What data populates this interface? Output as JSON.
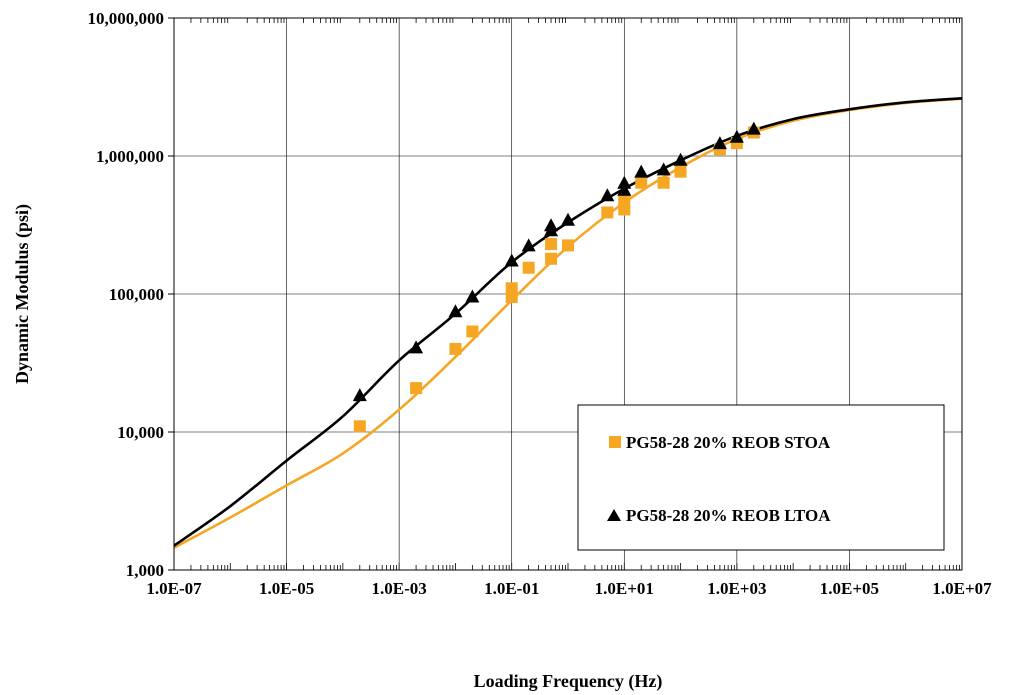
{
  "chart_data": {
    "type": "scatter",
    "xlabel": "Loading Frequency (Hz)",
    "ylabel": "Dynamic Modulus (psi)",
    "x_scale": "log",
    "y_scale": "log",
    "xlim": [
      1e-07,
      10000000.0
    ],
    "ylim": [
      1000,
      10000000
    ],
    "x_tick_labels": [
      "1.0E-07",
      "1.0E-05",
      "1.0E-03",
      "1.0E-01",
      "1.0E+01",
      "1.0E+03",
      "1.0E+05",
      "1.0E+07"
    ],
    "y_tick_labels": [
      "1,000",
      "10,000",
      "100,000",
      "1,000,000",
      "10,000,000"
    ],
    "grid": true,
    "legend_position": "bottom-right",
    "series": [
      {
        "name": "PG58-28 20% REOB STOA",
        "marker": "square",
        "color": "#F5A623",
        "points": [
          [
            0.0002,
            11000
          ],
          [
            0.002,
            20800
          ],
          [
            0.01,
            40000
          ],
          [
            0.02,
            53500
          ],
          [
            0.1,
            95000
          ],
          [
            0.1,
            110000
          ],
          [
            0.2,
            155000
          ],
          [
            0.5,
            180000
          ],
          [
            0.5,
            230000
          ],
          [
            1,
            225000
          ],
          [
            5,
            390000
          ],
          [
            10,
            410000
          ],
          [
            10,
            475000
          ],
          [
            20,
            640000
          ],
          [
            50,
            640000
          ],
          [
            100,
            770000
          ],
          [
            500,
            1120000
          ],
          [
            1000,
            1240000
          ],
          [
            2000,
            1480000
          ]
        ],
        "fit_curve": [
          [
            1e-07,
            1450
          ],
          [
            1e-06,
            2400
          ],
          [
            1e-05,
            4100
          ],
          [
            0.0001,
            7000
          ],
          [
            0.001,
            14500
          ],
          [
            0.01,
            35000
          ],
          [
            0.1,
            90000
          ],
          [
            1,
            220000
          ],
          [
            10,
            460000
          ],
          [
            100,
            830000
          ],
          [
            1000,
            1330000
          ],
          [
            10000.0,
            1800000
          ],
          [
            100000.0,
            2150000
          ],
          [
            1000000.0,
            2420000
          ],
          [
            10000000.0,
            2600000
          ]
        ]
      },
      {
        "name": "PG58-28 20% REOB LTOA",
        "marker": "triangle",
        "color": "#000000",
        "points": [
          [
            0.0002,
            18500
          ],
          [
            0.002,
            41000
          ],
          [
            0.01,
            75000
          ],
          [
            0.02,
            96000
          ],
          [
            0.1,
            175000
          ],
          [
            0.2,
            225000
          ],
          [
            0.5,
            290000
          ],
          [
            0.5,
            315000
          ],
          [
            1,
            345000
          ],
          [
            5,
            520000
          ],
          [
            10,
            570000
          ],
          [
            10,
            640000
          ],
          [
            20,
            770000
          ],
          [
            50,
            800000
          ],
          [
            100,
            940000
          ],
          [
            500,
            1240000
          ],
          [
            1000,
            1380000
          ],
          [
            2000,
            1580000
          ]
        ],
        "fit_curve": [
          [
            1e-07,
            1500
          ],
          [
            1e-06,
            2900
          ],
          [
            1e-05,
            6200
          ],
          [
            0.0001,
            13000
          ],
          [
            0.001,
            33000
          ],
          [
            0.01,
            72000
          ],
          [
            0.1,
            170000
          ],
          [
            1,
            330000
          ],
          [
            10,
            580000
          ],
          [
            100,
            930000
          ],
          [
            1000,
            1400000
          ],
          [
            10000.0,
            1850000
          ],
          [
            100000.0,
            2180000
          ],
          [
            1000000.0,
            2450000
          ],
          [
            10000000.0,
            2620000
          ]
        ]
      }
    ]
  }
}
